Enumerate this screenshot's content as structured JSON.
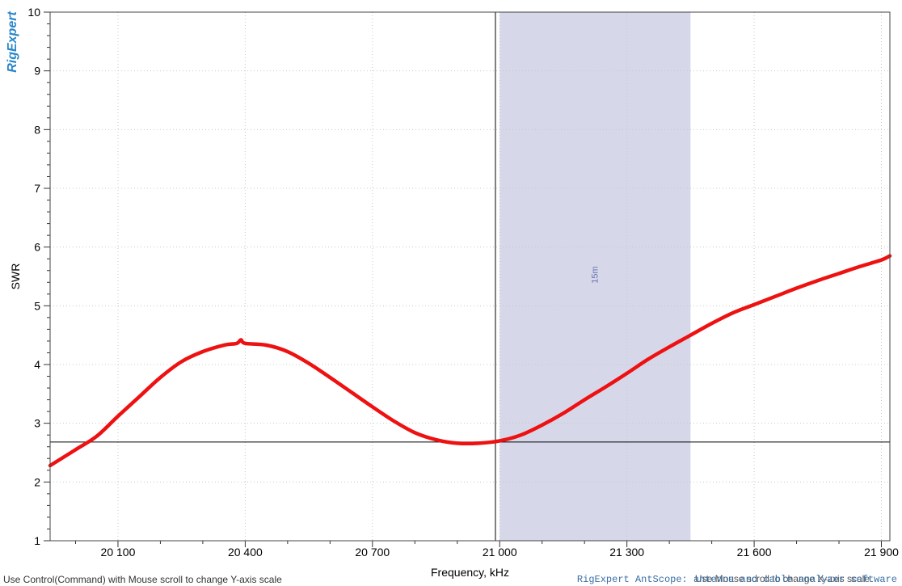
{
  "logo_text": "RigExpert",
  "hints": {
    "y_scale": "Use Control(Command) with Mouse scroll to change Y-axis scale",
    "x_scale": "Use Mouse scroll to change X-axis scale",
    "app": "RigExpert AntScope: antenna and cable analyzer software"
  },
  "chart_data": {
    "type": "line",
    "title": "",
    "xlabel": "Frequency, kHz",
    "ylabel": "SWR",
    "xlim": [
      19940,
      21920
    ],
    "ylim": [
      1,
      10
    ],
    "x_ticks": [
      20100,
      20400,
      20700,
      21000,
      21300,
      21600,
      21900
    ],
    "x_tick_labels": [
      "20 100",
      "20 400",
      "20 700",
      "21 000",
      "21 300",
      "21 600",
      "21 900"
    ],
    "y_ticks": [
      1,
      2,
      3,
      4,
      5,
      6,
      7,
      8,
      9,
      10
    ],
    "y_tick_labels": [
      "1",
      "2",
      "3",
      "4",
      "5",
      "6",
      "7",
      "8",
      "9",
      "10"
    ],
    "grid": true,
    "band": {
      "label": "15m",
      "x_start": 21000,
      "x_end": 21450,
      "color": "#d6d8e9"
    },
    "cursor": {
      "x": 20990,
      "y": 2.68
    },
    "series": [
      {
        "color": "#ee1111",
        "x": [
          19940,
          20000,
          20050,
          20100,
          20150,
          20200,
          20250,
          20300,
          20350,
          20380,
          20390,
          20400,
          20450,
          20500,
          20550,
          20600,
          20650,
          20700,
          20750,
          20800,
          20850,
          20900,
          20950,
          21000,
          21050,
          21100,
          21150,
          21200,
          21250,
          21300,
          21350,
          21400,
          21450,
          21500,
          21550,
          21600,
          21650,
          21700,
          21750,
          21800,
          21850,
          21900,
          21920
        ],
        "y": [
          2.28,
          2.55,
          2.78,
          3.12,
          3.45,
          3.78,
          4.05,
          4.22,
          4.33,
          4.36,
          4.42,
          4.36,
          4.33,
          4.22,
          4.02,
          3.78,
          3.53,
          3.28,
          3.04,
          2.84,
          2.72,
          2.66,
          2.66,
          2.7,
          2.8,
          2.97,
          3.17,
          3.4,
          3.62,
          3.85,
          4.09,
          4.3,
          4.5,
          4.7,
          4.88,
          5.02,
          5.16,
          5.3,
          5.43,
          5.55,
          5.67,
          5.78,
          5.85
        ]
      }
    ]
  }
}
